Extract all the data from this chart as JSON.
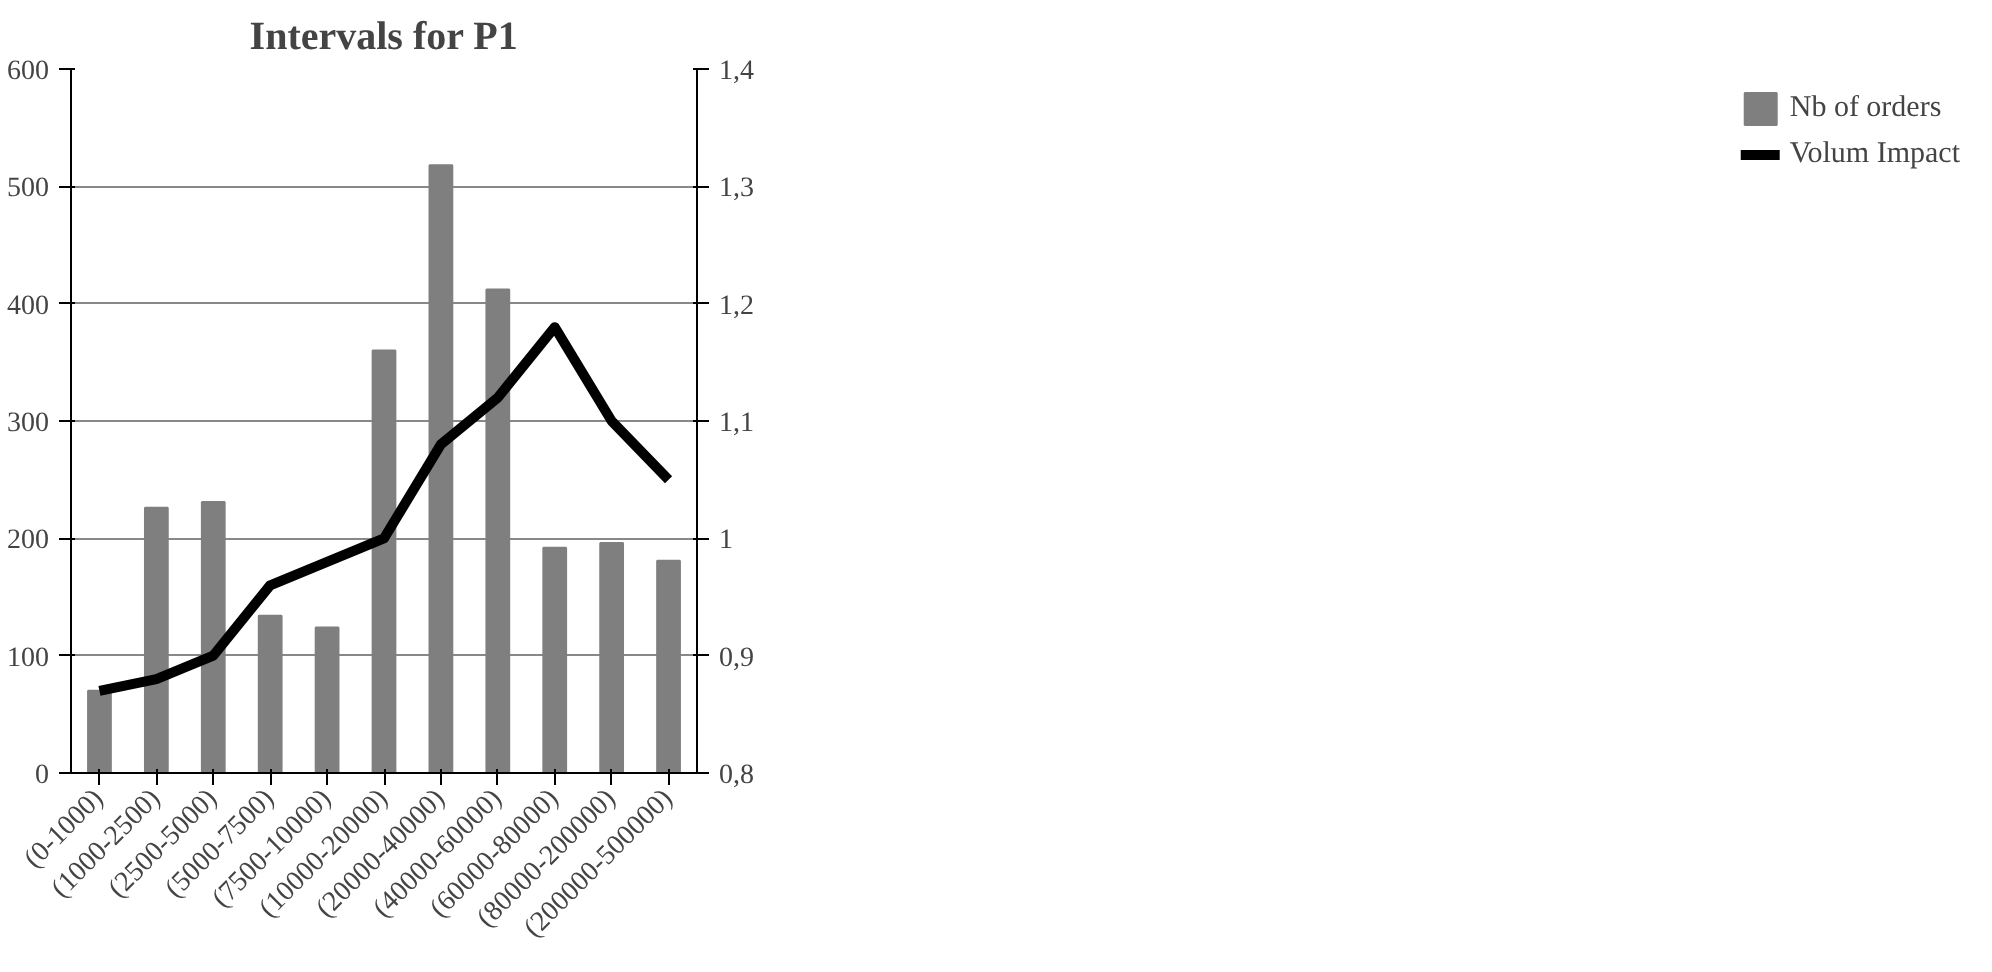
{
  "chart_data": {
    "type": "bar",
    "title": "Intervals for P1",
    "categories": [
      "(0-1000)",
      "(1000-2500)",
      "(2500-5000)",
      "(5000-7500)",
      "(7500-10000)",
      "(10000-20000)",
      "(20000-40000)",
      "(40000-60000)",
      "(60000-80000)",
      "(80000-200000)",
      "(200000-500000)"
    ],
    "series": [
      {
        "name": "Nb of orders",
        "color": "#7f7f7f",
        "values": [
          70,
          226,
          231,
          134,
          124,
          360,
          518,
          412,
          192,
          196,
          181
        ]
      },
      {
        "name": "Volum Impact",
        "type": "line",
        "axis": "y2",
        "color": "#000000",
        "values": [
          0.87,
          0.88,
          0.9,
          0.96,
          0.98,
          1.0,
          1.08,
          1.12,
          1.18,
          1.1,
          1.05
        ]
      }
    ],
    "ylim": [
      0,
      600
    ],
    "yticks": [
      0,
      100,
      200,
      300,
      400,
      500,
      600
    ],
    "y2lim": [
      0.8,
      1.4
    ],
    "y2ticks": [
      {
        "value": 0.8,
        "label": "0,8"
      },
      {
        "value": 0.9,
        "label": "0,9"
      },
      {
        "value": 1,
        "label": "1"
      },
      {
        "value": 1.1,
        "label": "1,1"
      },
      {
        "value": 1.2,
        "label": "1,2"
      },
      {
        "value": 1.3,
        "label": "1,3"
      },
      {
        "value": 1.4,
        "label": "1,4"
      }
    ],
    "grid": "y",
    "legend": "right"
  }
}
